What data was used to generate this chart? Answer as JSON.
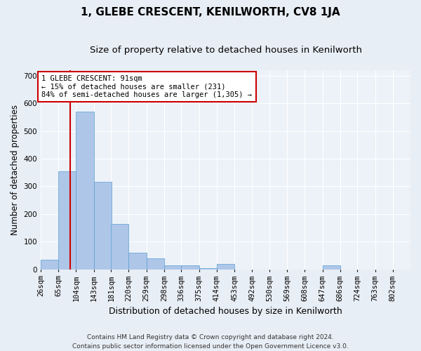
{
  "title": "1, GLEBE CRESCENT, KENILWORTH, CV8 1JA",
  "subtitle": "Size of property relative to detached houses in Kenilworth",
  "xlabel": "Distribution of detached houses by size in Kenilworth",
  "ylabel": "Number of detached properties",
  "footer_line1": "Contains HM Land Registry data © Crown copyright and database right 2024.",
  "footer_line2": "Contains public sector information licensed under the Open Government Licence v3.0.",
  "bins": [
    26,
    65,
    104,
    143,
    181,
    220,
    259,
    298,
    336,
    375,
    414,
    453,
    492,
    530,
    569,
    608,
    647,
    686,
    724,
    763,
    802
  ],
  "bin_labels": [
    "26sqm",
    "65sqm",
    "104sqm",
    "143sqm",
    "181sqm",
    "220sqm",
    "259sqm",
    "298sqm",
    "336sqm",
    "375sqm",
    "414sqm",
    "453sqm",
    "492sqm",
    "530sqm",
    "569sqm",
    "608sqm",
    "647sqm",
    "686sqm",
    "724sqm",
    "763sqm",
    "802sqm"
  ],
  "bar_heights": [
    35,
    355,
    570,
    315,
    165,
    60,
    40,
    15,
    15,
    5,
    20,
    0,
    0,
    0,
    0,
    0,
    15,
    0,
    0,
    0,
    0
  ],
  "bar_color": "#aec6e8",
  "bar_edge_color": "#5a9fd4",
  "property_size": 91,
  "property_line_color": "#cc0000",
  "annotation_text": "1 GLEBE CRESCENT: 91sqm\n← 15% of detached houses are smaller (231)\n84% of semi-detached houses are larger (1,305) →",
  "annotation_box_color": "#ffffff",
  "annotation_box_edge_color": "#cc0000",
  "ylim": [
    0,
    720
  ],
  "yticks": [
    0,
    100,
    200,
    300,
    400,
    500,
    600,
    700
  ],
  "bg_color": "#e8eef5",
  "plot_bg_color": "#edf2f8",
  "grid_color": "#ffffff",
  "title_fontsize": 11,
  "subtitle_fontsize": 9.5,
  "axis_label_fontsize": 8.5,
  "tick_fontsize": 7.5,
  "annotation_fontsize": 7.5,
  "footer_fontsize": 6.5
}
